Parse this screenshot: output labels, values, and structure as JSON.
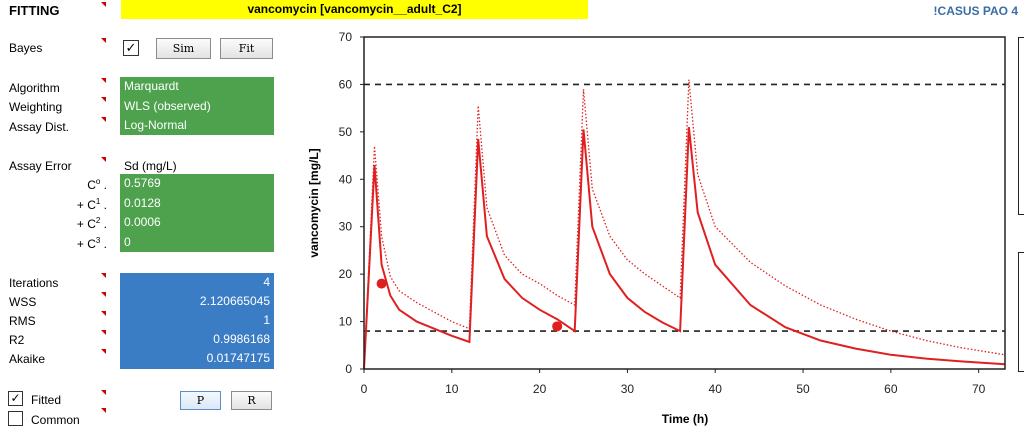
{
  "header": {
    "section_title": "FITTING",
    "drug_label": "vancomycin [vancomycin__adult_C2]",
    "app_label": "!CASUS PAO 4"
  },
  "bayes": {
    "label": "Bayes",
    "checked_mark": "✓",
    "sim_label": "Sim",
    "fit_label": "Fit"
  },
  "settings": {
    "algorithm_label": "Algorithm",
    "algorithm_value": "Marquardt",
    "weighting_label": "Weighting",
    "weighting_value": "WLS (observed)",
    "assay_dist_label": "Assay Dist.",
    "assay_dist_value": "Log-Normal"
  },
  "assay_error": {
    "label": "Assay Error",
    "column_header": "Sd (mg/L)",
    "coefficients": [
      {
        "prefix": "C",
        "sup": "o",
        "suffix": " .",
        "value": "0.5769"
      },
      {
        "prefix": "+ C",
        "sup": "1",
        "suffix": " .",
        "value": "0.0128"
      },
      {
        "prefix": "+ C",
        "sup": "2",
        "suffix": " .",
        "value": "0.0006"
      },
      {
        "prefix": "+ C",
        "sup": "3",
        "suffix": " .",
        "value": "0"
      }
    ]
  },
  "stats": [
    {
      "label": "Iterations",
      "value": "4"
    },
    {
      "label": "WSS",
      "value": "2.120665045"
    },
    {
      "label": "RMS",
      "value": "1"
    },
    {
      "label": "R2",
      "value": "0.9986168"
    },
    {
      "label": "Akaike",
      "value": "0.01747175"
    }
  ],
  "options": {
    "fitted_label": "Fitted",
    "fitted_mark": "✓",
    "common_label": "Common",
    "p_label": "P",
    "r_label": "R"
  },
  "colors": {
    "yellow": "#ffff00",
    "green": "#4ea24e",
    "blue": "#3b7dc4",
    "curve": "#e02020",
    "title_blue": "#3a6ea5"
  },
  "chart_data": {
    "type": "line",
    "xlabel": "Time (h)",
    "ylabel": "vancomycin [mg/L]",
    "xlim": [
      0,
      73
    ],
    "ylim": [
      0,
      70
    ],
    "x_ticks": [
      0,
      10,
      20,
      30,
      40,
      50,
      60,
      70
    ],
    "y_ticks": [
      0,
      10,
      20,
      30,
      40,
      50,
      60,
      70
    ],
    "reference_lines": [
      60,
      8
    ],
    "series": [
      {
        "style": "solid",
        "x": [
          0,
          1.2,
          2,
          3,
          4,
          6,
          8,
          10,
          12,
          13,
          14,
          16,
          18,
          20,
          22,
          24,
          25,
          26,
          28,
          30,
          32,
          34,
          36,
          37,
          38,
          40,
          44,
          48,
          52,
          56,
          60,
          64,
          68,
          73
        ],
        "y": [
          0,
          43,
          22,
          15.5,
          12.5,
          10,
          8.5,
          7,
          5.7,
          48.5,
          28,
          19,
          15,
          12.5,
          10.5,
          8,
          50.5,
          30,
          20,
          15,
          12,
          9.8,
          8,
          51,
          33,
          22,
          13.5,
          8.8,
          6,
          4.3,
          3,
          2.2,
          1.6,
          1
        ]
      },
      {
        "style": "dotted",
        "x": [
          0,
          1.2,
          2,
          3,
          4,
          6,
          8,
          10,
          12,
          13,
          14,
          16,
          18,
          20,
          22,
          24,
          25,
          26,
          28,
          30,
          32,
          34,
          36,
          37,
          38,
          40,
          44,
          48,
          52,
          56,
          60,
          64,
          68,
          73
        ],
        "y": [
          0,
          47,
          28,
          19.5,
          16.5,
          14,
          12,
          10,
          8.5,
          55.5,
          34,
          24,
          20,
          18,
          15.5,
          13.5,
          59,
          38,
          28,
          23,
          20,
          17.5,
          15,
          61,
          41,
          30,
          22.5,
          17.5,
          13.5,
          10.5,
          8,
          6,
          4.5,
          3
        ]
      }
    ],
    "observations": [
      {
        "x": 2,
        "y": 18
      },
      {
        "x": 22,
        "y": 9
      }
    ]
  }
}
